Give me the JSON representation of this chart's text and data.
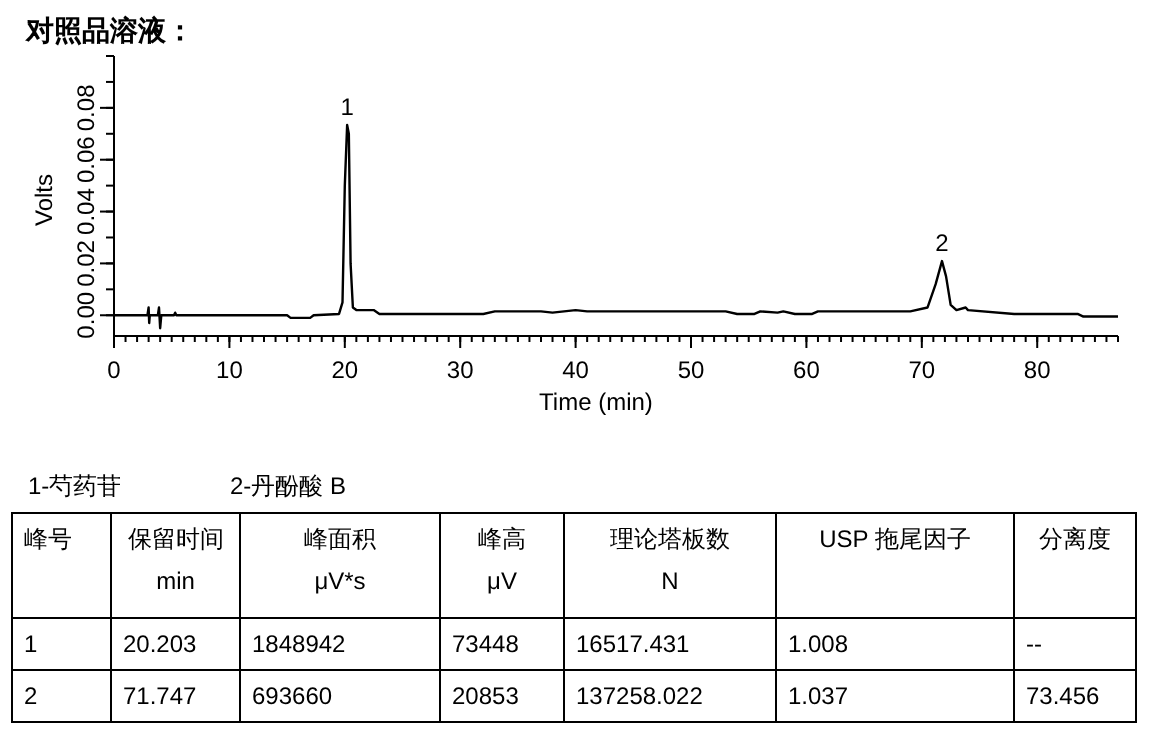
{
  "chart_data": [
    {
      "type": "line",
      "title": "对照品溶液：",
      "xlabel": "Time (min)",
      "ylabel": "Volts",
      "xlim": [
        0,
        87
      ],
      "ylim": [
        -0.008,
        0.1
      ],
      "xticks": [
        0,
        10,
        20,
        30,
        40,
        50,
        60,
        70,
        80
      ],
      "yticks": [
        {
          "value": 0,
          "label": "0.00"
        },
        {
          "value": 0.02,
          "label": "0.02"
        },
        {
          "value": 0.04,
          "label": "0.04"
        },
        {
          "value": 0.06,
          "label": "0.06"
        },
        {
          "value": 0.08,
          "label": "0.08"
        }
      ],
      "grid": false,
      "marker": "none",
      "line_style": "solid",
      "series": [
        {
          "color": "#000000",
          "x": [
            0,
            2.9,
            3.0,
            3.05,
            3.1,
            3.8,
            3.9,
            4.0,
            4.1,
            5.2,
            5.3,
            5.4,
            15,
            15.3,
            17,
            17.3,
            19.5,
            19.8,
            20.0,
            20.203,
            20.35,
            20.5,
            20.7,
            21,
            22.5,
            23,
            32,
            33,
            37,
            38,
            39,
            40,
            41,
            53,
            54,
            55.5,
            56,
            57.5,
            58,
            59,
            60.5,
            61,
            65,
            69,
            70.5,
            71.2,
            71.747,
            72.1,
            72.5,
            73,
            73.8,
            74,
            78,
            83.5,
            84,
            87
          ],
          "values": [
            0,
            0,
            0.003,
            -0.003,
            0,
            0,
            0.003,
            -0.005,
            0,
            0,
            0.001,
            0,
            0,
            -0.001,
            -0.001,
            0,
            0.0005,
            0.005,
            0.05,
            0.0734,
            0.07,
            0.02,
            0.003,
            0.002,
            0.002,
            0.0005,
            0.0005,
            0.0015,
            0.0015,
            0.001,
            0.0015,
            0.002,
            0.0015,
            0.0015,
            0.0005,
            0.0005,
            0.0015,
            0.001,
            0.0015,
            0.0005,
            0.0005,
            0.0015,
            0.0015,
            0.0015,
            0.003,
            0.012,
            0.0209,
            0.015,
            0.004,
            0.002,
            0.003,
            0.002,
            0.0005,
            0.0005,
            -0.0005,
            -0.0005
          ]
        }
      ],
      "annotations": [
        {
          "text": "1",
          "x": 20.203,
          "y": 0.0734
        },
        {
          "text": "2",
          "x": 71.747,
          "y": 0.0209
        }
      ]
    },
    {
      "type": "other",
      "annotations": [
        "1-芍药苷",
        "2-丹酚酸 B",
        "峰号",
        "保留时间\nmin",
        "峰面积\nμV*s",
        "峰高\nμV",
        "理论塔板数\nN",
        "USP 拖尾因子",
        "分离度",
        "1",
        "20.203",
        "1848942",
        "73448",
        "16517.431",
        "1.008",
        "--",
        "2",
        "71.747",
        "693660",
        "20853",
        "137258.022",
        "1.037",
        "73.456"
      ]
    }
  ]
}
